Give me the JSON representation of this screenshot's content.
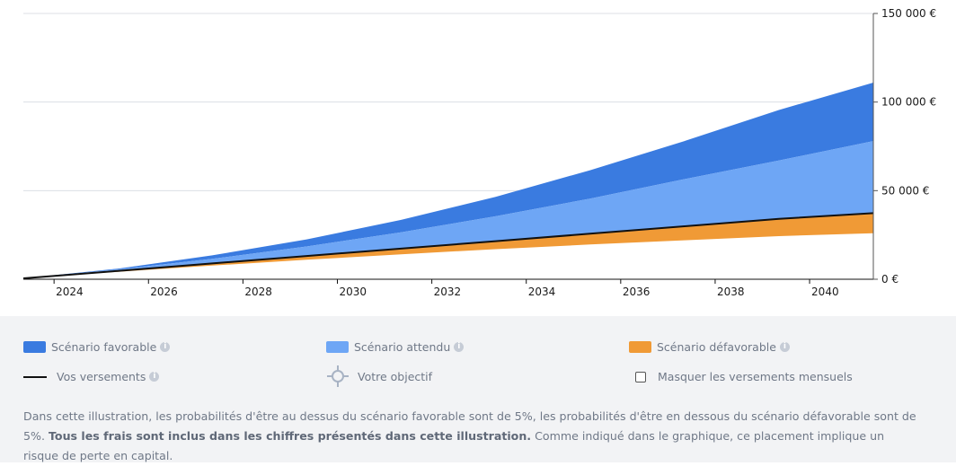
{
  "chart_data": {
    "type": "area",
    "x_start": 2023.35,
    "x_end": 2041.35,
    "x_ticks": [
      2024,
      2026,
      2028,
      2030,
      2032,
      2034,
      2036,
      2038,
      2040
    ],
    "y_ticks": [
      0,
      50000,
      100000,
      150000
    ],
    "y_tick_labels": [
      "0 €",
      "50 000 €",
      "100 000 €",
      "150 000 €"
    ],
    "ylim": [
      0,
      150000
    ],
    "grid": true,
    "y_axis_side": "right",
    "x": [
      2023.35,
      2025.35,
      2027.35,
      2029.35,
      2031.35,
      2033.35,
      2035.35,
      2037.35,
      2039.35,
      2041.35
    ],
    "series": [
      {
        "name": "Scénario favorable",
        "color": "#3a7be0",
        "values": [
          500,
          6000,
          13500,
          22500,
          33500,
          46500,
          61500,
          78000,
          95500,
          111000
        ]
      },
      {
        "name": "Scénario attendu",
        "color": "#6ea6f5",
        "values": [
          500,
          5500,
          11500,
          18500,
          26500,
          35500,
          45500,
          56500,
          67000,
          78000
        ]
      },
      {
        "name": "Vos versements",
        "color": "#111111",
        "values": [
          500,
          4700,
          8900,
          13100,
          17300,
          21500,
          25700,
          29900,
          34100,
          37300
        ]
      },
      {
        "name": "Scénario défavorable",
        "color": "#f09a36",
        "values": [
          500,
          4200,
          7700,
          11000,
          14100,
          17000,
          19600,
          22000,
          24300,
          26000
        ]
      }
    ]
  },
  "legend": {
    "favorable": "Scénario favorable",
    "attendu": "Scénario attendu",
    "defavorable": "Scénario défavorable",
    "versements": "Vos versements",
    "objectif": "Votre objectif",
    "masquer": "Masquer les versements mensuels",
    "info": "i"
  },
  "disclaimer": {
    "part1": "Dans cette illustration, les probabilités d'être au dessus du scénario favorable sont de 5%, les probabilités d'être en dessous du scénario défavorable sont de 5%. ",
    "bold": "Tous les frais sont inclus dans les chiffres présentés dans cette illustration.",
    "part2": " Comme indiqué dans le graphique, ce placement implique un risque de perte en capital."
  },
  "colors": {
    "favorable": "#3a7be0",
    "attendu": "#6ea6f5",
    "defavorable": "#f09a36",
    "versements": "#111111",
    "legend_bg": "#f2f3f5"
  }
}
